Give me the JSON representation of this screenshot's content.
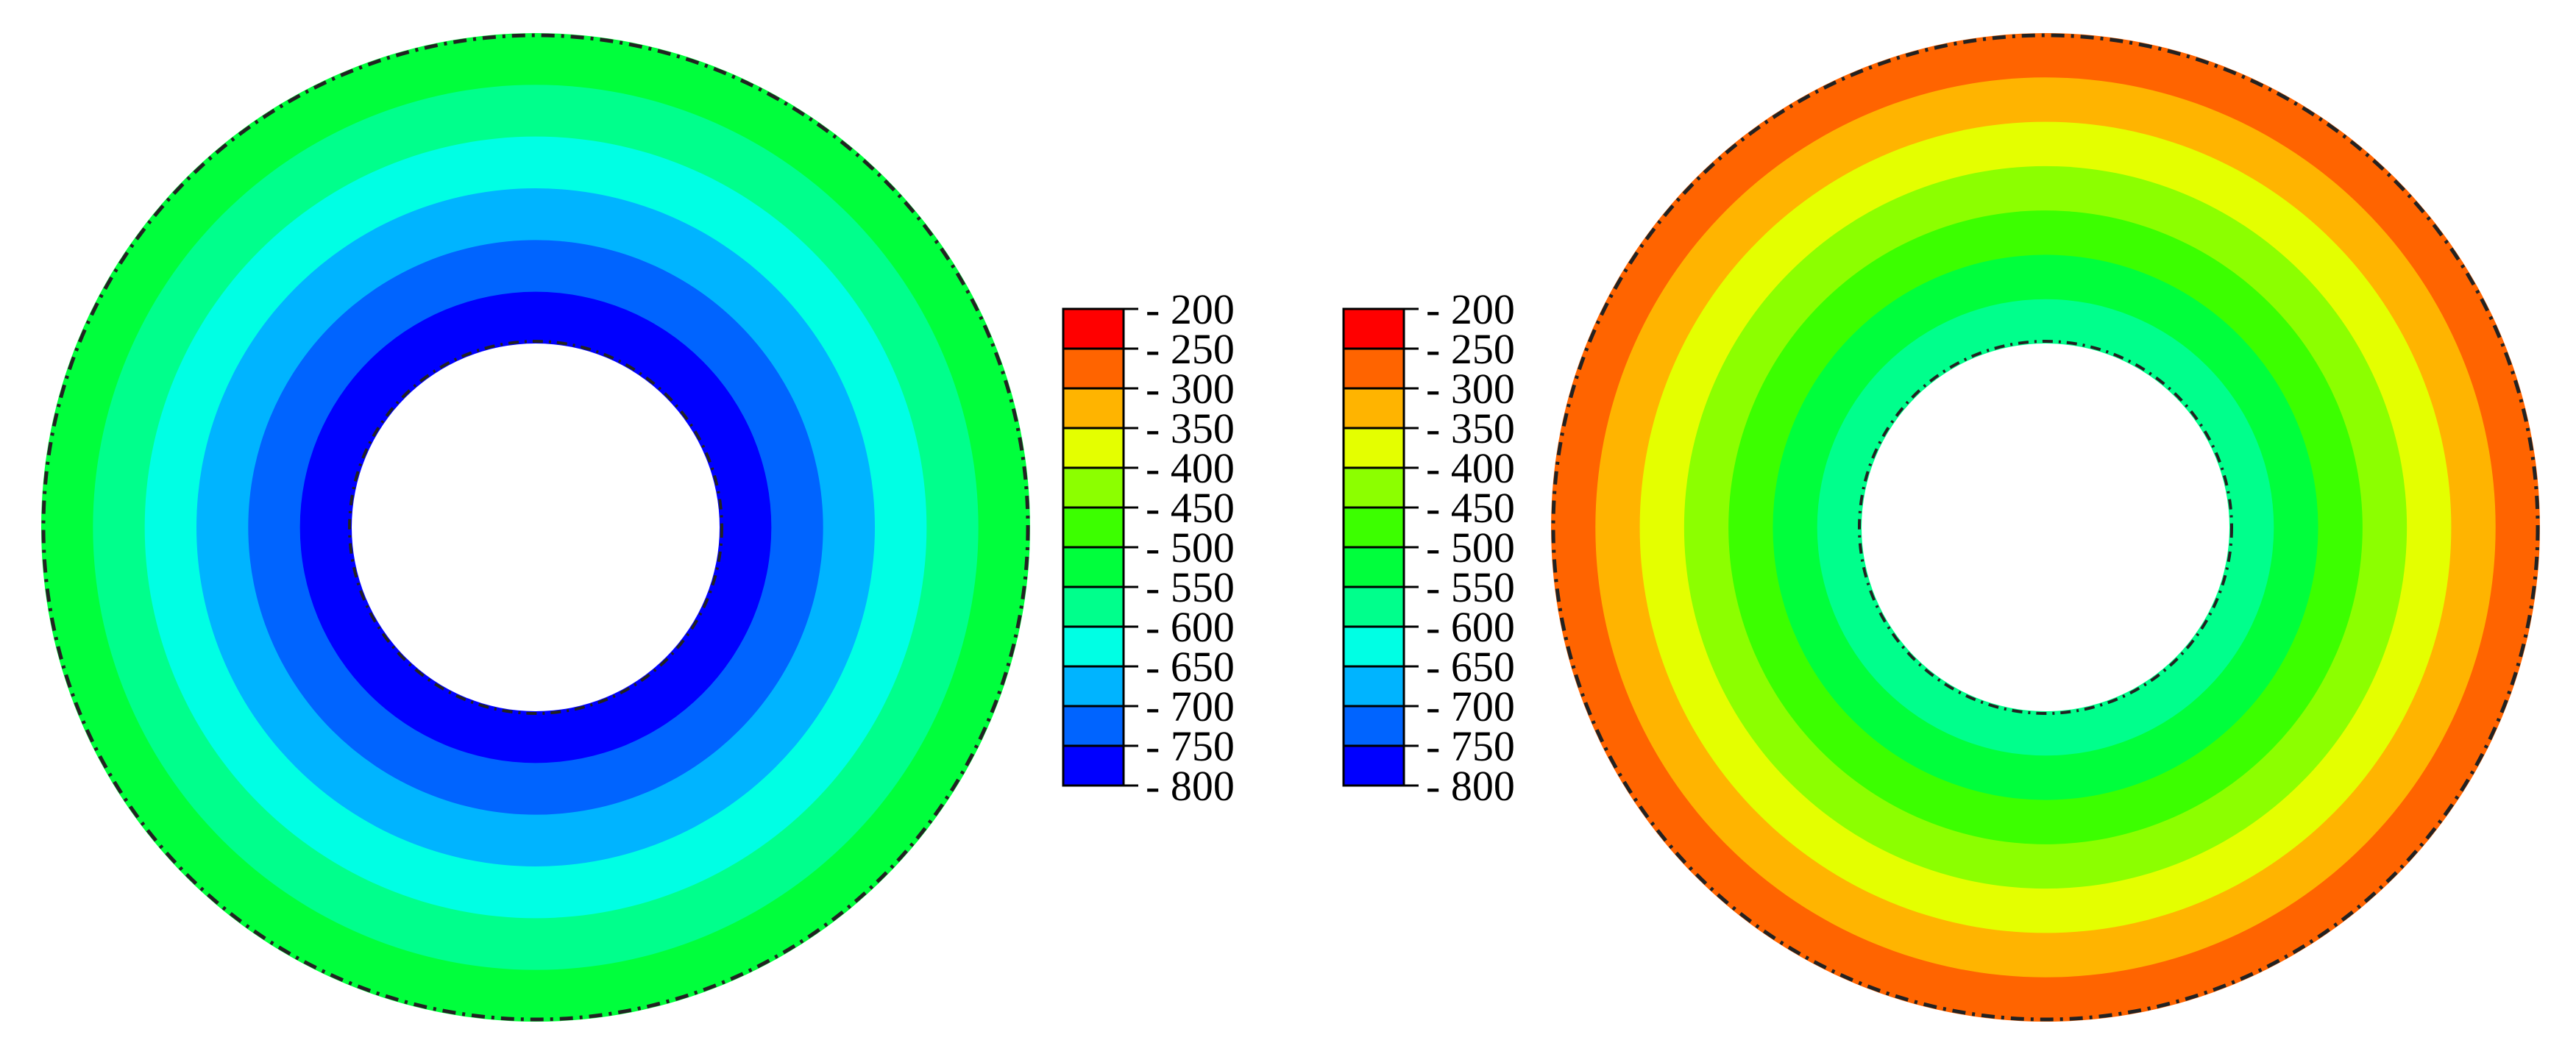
{
  "chart_data": [
    {
      "type": "heatmap",
      "plot": "annular-contour",
      "contour_levels": [
        200,
        250,
        300,
        350,
        400,
        450,
        500,
        550,
        600,
        650,
        700,
        750,
        800
      ],
      "bands_inner_to_outer": [
        750,
        700,
        650,
        600,
        550,
        500
      ],
      "colorbar_labels": [
        "- 200",
        "- 250",
        "- 300",
        "- 350",
        "- 400",
        "- 450",
        "- 500",
        "- 550",
        "- 600",
        "- 650",
        "- 700",
        "- 750",
        "- 800"
      ]
    },
    {
      "type": "heatmap",
      "plot": "annular-contour",
      "contour_levels": [
        200,
        250,
        300,
        350,
        400,
        450,
        500,
        550,
        600,
        650,
        700,
        750,
        800
      ],
      "bands_inner_to_outer": [
        550,
        500,
        450,
        400,
        350,
        300,
        250
      ],
      "colorbar_labels": [
        "- 200",
        "- 250",
        "- 300",
        "- 350",
        "- 400",
        "- 450",
        "- 500",
        "- 550",
        "- 600",
        "- 650",
        "- 700",
        "- 750",
        "- 800"
      ]
    }
  ],
  "level_colors": {
    "200": "#ff0000",
    "250": "#ff6400",
    "300": "#ffb400",
    "350": "#e4ff00",
    "400": "#8cff00",
    "450": "#3cff00",
    "500": "#00ff3c",
    "550": "#00ff8c",
    "600": "#00ffe4",
    "650": "#00b4ff",
    "700": "#0064ff",
    "750": "#0000ff"
  }
}
